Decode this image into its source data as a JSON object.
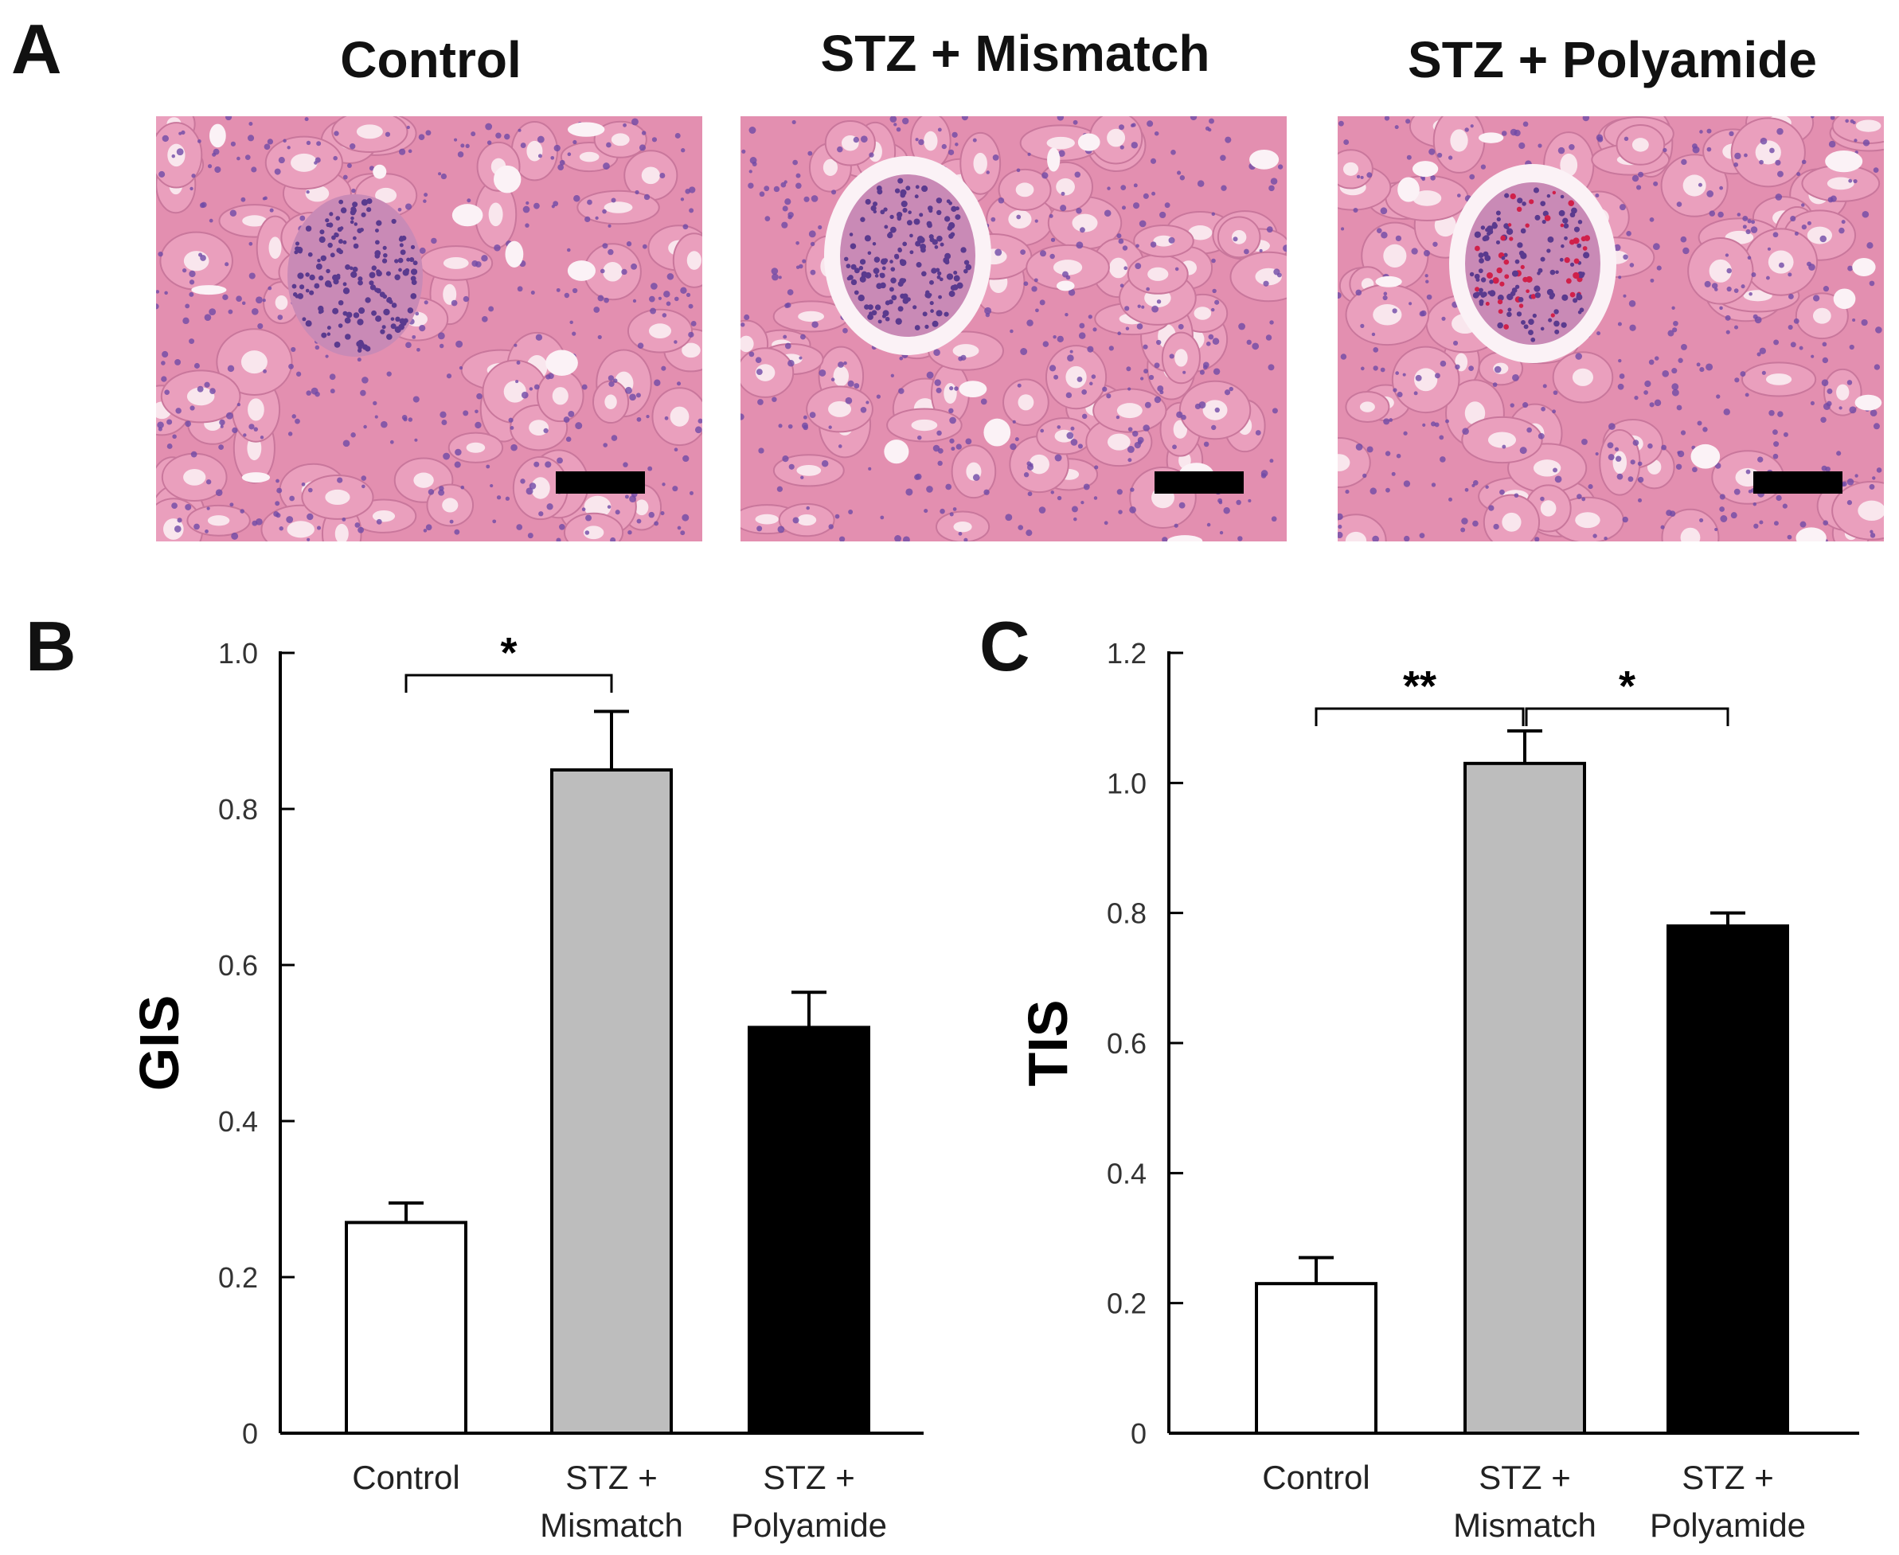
{
  "panel_a": {
    "letter": "A",
    "images": [
      {
        "title": "Control",
        "glomerulus": "compact"
      },
      {
        "title": "STZ + Mismatch",
        "glomerulus": "enlarged"
      },
      {
        "title": "STZ + Polyamide",
        "glomerulus": "congested"
      }
    ],
    "colors": {
      "tissue": "#e38fb0",
      "nuclei": "#6f4aa6",
      "lumen": "#fbf2f6"
    }
  },
  "chart_data": [
    {
      "panel": "B",
      "type": "bar",
      "ylabel": "GIS",
      "ylim": [
        0,
        1.0
      ],
      "yticks": [
        "0",
        "0.2",
        "0.4",
        "0.6",
        "0.8",
        "1.0"
      ],
      "categories": [
        [
          "Control"
        ],
        [
          "STZ +",
          "Mismatch"
        ],
        [
          "STZ +",
          "Polyamide"
        ]
      ],
      "values": [
        0.27,
        0.85,
        0.52
      ],
      "errors": [
        0.025,
        0.075,
        0.045
      ],
      "colors": [
        "#ffffff",
        "#bdbdbd",
        "#000000"
      ],
      "significance": [
        {
          "from": 0,
          "to": 1,
          "label": "*"
        }
      ]
    },
    {
      "panel": "C",
      "type": "bar",
      "ylabel": "TIS",
      "ylim": [
        0,
        1.2
      ],
      "yticks": [
        "0",
        "0.2",
        "0.4",
        "0.6",
        "0.8",
        "1.0",
        "1.2"
      ],
      "categories": [
        [
          "Control"
        ],
        [
          "STZ +",
          "Mismatch"
        ],
        [
          "STZ +",
          "Polyamide"
        ]
      ],
      "values": [
        0.23,
        1.03,
        0.78
      ],
      "errors": [
        0.04,
        0.05,
        0.02
      ],
      "colors": [
        "#ffffff",
        "#bdbdbd",
        "#000000"
      ],
      "significance": [
        {
          "from": 0,
          "to": 1,
          "label": "**"
        },
        {
          "from": 1,
          "to": 2,
          "label": "*"
        }
      ]
    }
  ]
}
